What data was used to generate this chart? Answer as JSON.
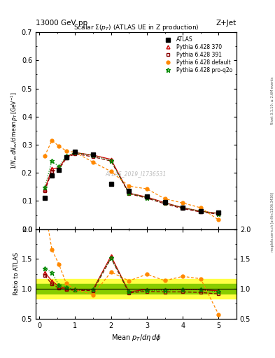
{
  "title_top": "13000 GeV pp",
  "title_right": "Z+Jet",
  "plot_title": "Scalar $\\Sigma(p_T)$ (ATLAS UE in Z production)",
  "ylabel_main": "1/N$_{ev}$ dN$_{ev}$/d mean p$_T$ [GeV$^{-1}$]",
  "ylabel_ratio": "Ratio to ATLAS",
  "xlabel": "Mean p$_T$/d$\\eta$ d$\\phi$",
  "watermark": "ATLAS_2019_I1736531",
  "right_label1": "Rivet 3.1.10; ≥ 2.6M events",
  "right_label2": "mcplots.cern.ch [arXiv:1306.3436]",
  "ylim_main": [
    0.0,
    0.7
  ],
  "ylim_ratio": [
    0.5,
    2.0
  ],
  "atlas_x": [
    0.15,
    0.35,
    0.55,
    0.75,
    1.0,
    1.5,
    2.0,
    2.5,
    3.0,
    3.5,
    4.0,
    4.5,
    5.0
  ],
  "atlas_y": [
    0.11,
    0.19,
    0.21,
    0.255,
    0.275,
    0.265,
    0.16,
    0.135,
    0.115,
    0.095,
    0.077,
    0.065,
    0.058
  ],
  "p370_x": [
    0.15,
    0.35,
    0.55,
    0.75,
    1.0,
    1.5,
    2.0,
    2.5,
    3.0,
    3.5,
    4.0,
    4.5,
    5.0
  ],
  "p370_y": [
    0.14,
    0.215,
    0.218,
    0.255,
    0.272,
    0.263,
    0.248,
    0.128,
    0.114,
    0.094,
    0.076,
    0.064,
    0.056
  ],
  "p391_x": [
    0.15,
    0.35,
    0.55,
    0.75,
    1.0,
    1.5,
    2.0,
    2.5,
    3.0,
    3.5,
    4.0,
    4.5,
    5.0
  ],
  "p391_y": [
    0.135,
    0.205,
    0.212,
    0.252,
    0.268,
    0.257,
    0.242,
    0.126,
    0.11,
    0.09,
    0.073,
    0.061,
    0.053
  ],
  "pdef_x": [
    0.15,
    0.35,
    0.55,
    0.75,
    1.0,
    1.5,
    2.0,
    2.5,
    3.0,
    3.5,
    4.0,
    4.5,
    5.0
  ],
  "pdef_y": [
    0.26,
    0.315,
    0.295,
    0.278,
    0.273,
    0.238,
    0.205,
    0.153,
    0.143,
    0.108,
    0.093,
    0.076,
    0.033
  ],
  "pq2o_x": [
    0.15,
    0.35,
    0.55,
    0.75,
    1.0,
    1.5,
    2.0,
    2.5,
    3.0,
    3.5,
    4.0,
    4.5,
    5.0
  ],
  "pq2o_y": [
    0.148,
    0.242,
    0.222,
    0.261,
    0.272,
    0.262,
    0.243,
    0.128,
    0.112,
    0.093,
    0.076,
    0.064,
    0.055
  ],
  "col_atlas": "#000000",
  "col_p370": "#cc0000",
  "col_p391": "#880000",
  "col_pdef": "#ff8800",
  "col_pq2o": "#008800",
  "band_inner": 0.08,
  "band_outer": 0.16
}
